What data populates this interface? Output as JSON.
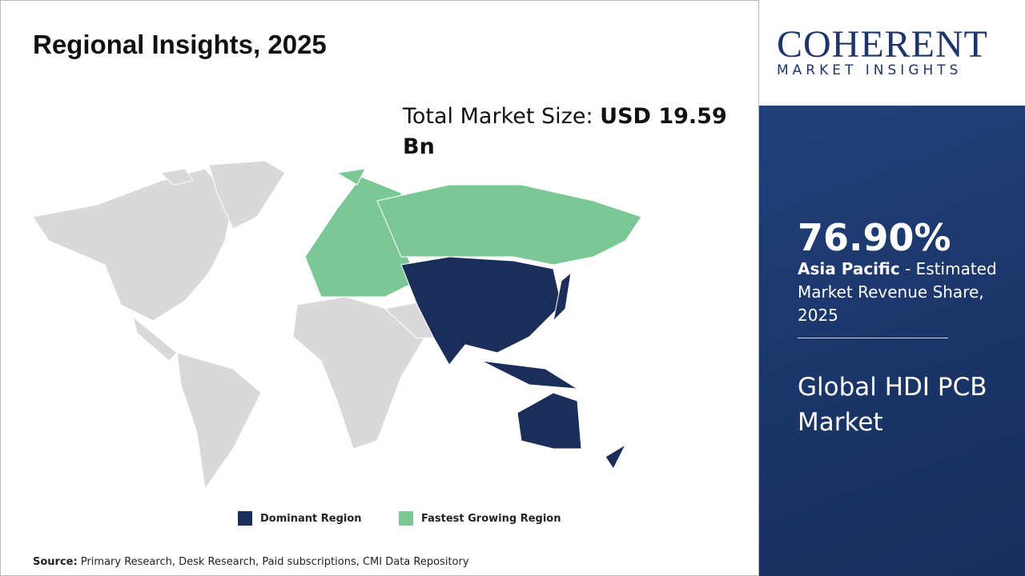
{
  "header": {
    "title": "Regional Insights, 2025"
  },
  "market_size": {
    "label": "Total Market Size: ",
    "value": "USD 19.59 Bn"
  },
  "legend": {
    "dominant": "Dominant Region",
    "fastest": "Fastest Growing Region"
  },
  "source": {
    "label": "Source:",
    "text": "Primary Research, Desk Research, Paid subscriptions, CMI Data Repository"
  },
  "logo": {
    "name": "COHERENT",
    "tagline": "MARKET INSIGHTS"
  },
  "highlight": {
    "share": "76.90%",
    "region": "Asia Pacific",
    "description": " - Estimated Market Revenue Share, 2025"
  },
  "market_name": "Global HDI PCB Market"
}
